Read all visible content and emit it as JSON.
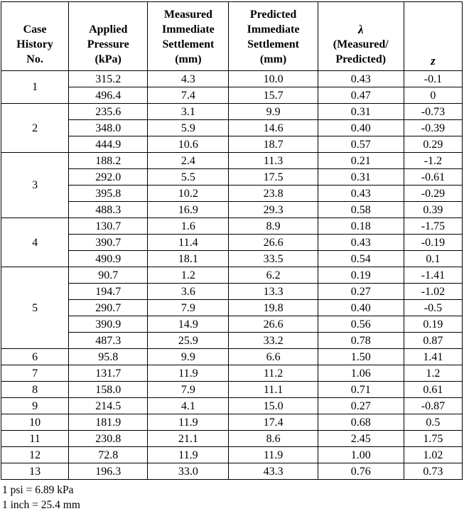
{
  "page": {
    "background": "#ffffff",
    "text_color": "#000000",
    "border_color": "#000000"
  },
  "table": {
    "columns": [
      {
        "id": "case",
        "label": "Case\nHistory\nNo."
      },
      {
        "id": "pressure",
        "label": "Applied\nPressure\n(kPa)"
      },
      {
        "id": "measured",
        "label": "Measured\nImmediate\nSettlement\n(mm)"
      },
      {
        "id": "predicted",
        "label": "Predicted\nImmediate\nSettlement\n(mm)"
      },
      {
        "id": "lambda",
        "symbol": "λ",
        "label": "(Measured/\nPredicted)"
      },
      {
        "id": "z",
        "label": "z"
      }
    ],
    "groups": [
      {
        "case": "1",
        "rows": [
          [
            "315.2",
            "4.3",
            "10.0",
            "0.43",
            "-0.1"
          ],
          [
            "496.4",
            "7.4",
            "15.7",
            "0.47",
            "0"
          ]
        ]
      },
      {
        "case": "2",
        "rows": [
          [
            "235.6",
            "3.1",
            "9.9",
            "0.31",
            "-0.73"
          ],
          [
            "348.0",
            "5.9",
            "14.6",
            "0.40",
            "-0.39"
          ],
          [
            "444.9",
            "10.6",
            "18.7",
            "0.57",
            "0.29"
          ]
        ]
      },
      {
        "case": "3",
        "rows": [
          [
            "188.2",
            "2.4",
            "11.3",
            "0.21",
            "-1.2"
          ],
          [
            "292.0",
            "5.5",
            "17.5",
            "0.31",
            "-0.61"
          ],
          [
            "395.8",
            "10.2",
            "23.8",
            "0.43",
            "-0.29"
          ],
          [
            "488.3",
            "16.9",
            "29.3",
            "0.58",
            "0.39"
          ]
        ]
      },
      {
        "case": "4",
        "rows": [
          [
            "130.7",
            "1.6",
            "8.9",
            "0.18",
            "-1.75"
          ],
          [
            "390.7",
            "11.4",
            "26.6",
            "0.43",
            "-0.19"
          ],
          [
            "490.9",
            "18.1",
            "33.5",
            "0.54",
            "0.1"
          ]
        ]
      },
      {
        "case": "5",
        "rows": [
          [
            "90.7",
            "1.2",
            "6.2",
            "0.19",
            "-1.41"
          ],
          [
            "194.7",
            "3.6",
            "13.3",
            "0.27",
            "-1.02"
          ],
          [
            "290.7",
            "7.9",
            "19.8",
            "0.40",
            "-0.5"
          ],
          [
            "390.9",
            "14.9",
            "26.6",
            "0.56",
            "0.19"
          ],
          [
            "487.3",
            "25.9",
            "33.2",
            "0.78",
            "0.87"
          ]
        ]
      },
      {
        "case": "6",
        "rows": [
          [
            "95.8",
            "9.9",
            "6.6",
            "1.50",
            "1.41"
          ]
        ]
      },
      {
        "case": "7",
        "rows": [
          [
            "131.7",
            "11.9",
            "11.2",
            "1.06",
            "1.2"
          ]
        ]
      },
      {
        "case": "8",
        "rows": [
          [
            "158.0",
            "7.9",
            "11.1",
            "0.71",
            "0.61"
          ]
        ]
      },
      {
        "case": "9",
        "rows": [
          [
            "214.5",
            "4.1",
            "15.0",
            "0.27",
            "-0.87"
          ]
        ]
      },
      {
        "case": "10",
        "rows": [
          [
            "181.9",
            "11.9",
            "17.4",
            "0.68",
            "0.5"
          ]
        ]
      },
      {
        "case": "11",
        "rows": [
          [
            "230.8",
            "21.1",
            "8.6",
            "2.45",
            "1.75"
          ]
        ]
      },
      {
        "case": "12",
        "rows": [
          [
            "72.8",
            "11.9",
            "11.9",
            "1.00",
            "1.02"
          ]
        ]
      },
      {
        "case": "13",
        "rows": [
          [
            "196.3",
            "33.0",
            "43.3",
            "0.76",
            "0.73"
          ]
        ]
      }
    ]
  },
  "footnotes": [
    "1 psi = 6.89 kPa",
    "1 inch = 25.4 mm"
  ]
}
